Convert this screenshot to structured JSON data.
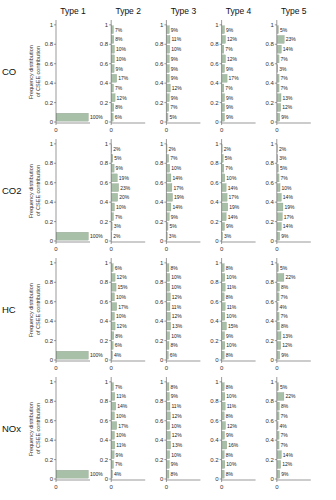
{
  "chart_data": [
    {
      "type": "bar",
      "orientation": "horizontal",
      "title": "Type 1",
      "y_label": "Frequency distribution of CSEE contribution",
      "annotations": [
        "CO"
      ],
      "bins": [
        0,
        0.1,
        0.2,
        0.3,
        0.4,
        0.5,
        0.6,
        0.7,
        0.8,
        0.9,
        1
      ],
      "values": [
        1.0,
        0.0,
        0.0,
        0.0,
        0.0,
        0.0,
        0.0,
        0.0,
        0.0,
        0.0
      ],
      "value_labels": [
        "100%",
        null,
        null,
        null,
        null,
        null,
        null,
        null,
        null,
        null
      ],
      "color": "#a8bfa8",
      "xlim": [
        0,
        1.05
      ],
      "xticks": [
        0
      ],
      "ylim": [
        -0.01,
        1.05
      ],
      "yticks": [
        0,
        0.2,
        0.4,
        0.6,
        0.8,
        1
      ],
      "data_labels": true,
      "grid": false
    },
    {
      "type": "bar",
      "orientation": "horizontal",
      "title": "Type 2",
      "bins": [
        0,
        0.1,
        0.2,
        0.3,
        0.4,
        0.5,
        0.6,
        0.7,
        0.8,
        0.9,
        1
      ],
      "values": [
        0.06,
        0.08,
        0.12,
        0.07,
        0.17,
        0.09,
        0.1,
        0.1,
        0.08,
        0.07
      ],
      "value_labels": [
        "6%",
        "8%",
        "12%",
        "7%",
        "17%",
        "9%",
        "10%",
        "10%",
        "8%",
        "7%"
      ],
      "color": "#a8bfa8",
      "xlim": [
        0,
        1.05
      ],
      "xticks": [
        0
      ],
      "ylim": [
        -0.01,
        1.05
      ],
      "yticks": [
        0,
        0.2,
        0.4,
        0.6,
        0.8,
        1
      ],
      "data_labels": true,
      "grid": false
    },
    {
      "type": "bar",
      "orientation": "horizontal",
      "title": "Type 3",
      "bins": [
        0,
        0.1,
        0.2,
        0.3,
        0.4,
        0.5,
        0.6,
        0.7,
        0.8,
        0.9,
        1
      ],
      "values": [
        0.05,
        0.07,
        0.09,
        0.12,
        0.09,
        0.09,
        0.09,
        0.1,
        0.11,
        0.09
      ],
      "value_labels": [
        "5%",
        "7%",
        "9%",
        "12%",
        "9%",
        "9%",
        "9%",
        "10%",
        "11%",
        "9%"
      ],
      "color": "#a8bfa8",
      "xlim": [
        0,
        1.05
      ],
      "xticks": [
        0
      ],
      "ylim": [
        -0.01,
        1.05
      ],
      "yticks": [
        0,
        0.2,
        0.4,
        0.6,
        0.8,
        1
      ],
      "data_labels": true,
      "grid": false
    },
    {
      "type": "bar",
      "orientation": "horizontal",
      "title": "Type 4",
      "bins": [
        0,
        0.1,
        0.2,
        0.3,
        0.4,
        0.5,
        0.6,
        0.7,
        0.8,
        0.9,
        1
      ],
      "values": [
        0.09,
        0.09,
        0.09,
        0.07,
        0.17,
        0.09,
        0.12,
        0.07,
        0.12,
        0.09
      ],
      "value_labels": [
        "9%",
        "9%",
        "9%",
        "7%",
        "17%",
        "9%",
        "12%",
        "7%",
        "12%",
        "9%"
      ],
      "color": "#a8bfa8",
      "xlim": [
        0,
        1.05
      ],
      "xticks": [
        0
      ],
      "ylim": [
        -0.01,
        1.05
      ],
      "yticks": [
        0,
        0.2,
        0.4,
        0.6,
        0.8,
        1
      ],
      "data_labels": true,
      "grid": false
    },
    {
      "type": "bar",
      "orientation": "horizontal",
      "title": "Type 5",
      "bins": [
        0,
        0.1,
        0.2,
        0.3,
        0.4,
        0.5,
        0.6,
        0.7,
        0.8,
        0.9,
        1
      ],
      "values": [
        0.09,
        0.12,
        0.13,
        0.07,
        0.07,
        0.03,
        0.07,
        0.14,
        0.23,
        0.05
      ],
      "value_labels": [
        "9%",
        "12%",
        "13%",
        "7%",
        "7%",
        "3%",
        "7%",
        "14%",
        "23%",
        "5%"
      ],
      "color": "#a8bfa8",
      "xlim": [
        0,
        1.05
      ],
      "xticks": [
        0
      ],
      "ylim": [
        -0.01,
        1.05
      ],
      "yticks": [
        0,
        0.2,
        0.4,
        0.6,
        0.8,
        1
      ],
      "data_labels": true,
      "grid": false
    },
    {
      "type": "bar",
      "orientation": "horizontal",
      "y_label": "Frequency distribution of CSEE contribution",
      "annotations": [
        "CO2"
      ],
      "bins": [
        0,
        0.1,
        0.2,
        0.3,
        0.4,
        0.5,
        0.6,
        0.7,
        0.8,
        0.9,
        1
      ],
      "values": [
        1.0,
        0.0,
        0.0,
        0.0,
        0.0,
        0.0,
        0.0,
        0.0,
        0.0,
        0.0
      ],
      "value_labels": [
        "100%",
        null,
        null,
        null,
        null,
        null,
        null,
        null,
        null,
        null
      ],
      "color": "#a8bfa8",
      "xlim": [
        0,
        1.05
      ],
      "xticks": [
        0
      ],
      "ylim": [
        -0.01,
        1.05
      ],
      "yticks": [
        0,
        0.2,
        0.4,
        0.6,
        0.8,
        1
      ],
      "data_labels": true,
      "grid": false
    },
    {
      "type": "bar",
      "orientation": "horizontal",
      "bins": [
        0,
        0.1,
        0.2,
        0.3,
        0.4,
        0.5,
        0.6,
        0.7,
        0.8,
        0.9,
        1
      ],
      "values": [
        0.02,
        0.03,
        0.07,
        0.1,
        0.2,
        0.23,
        0.19,
        0.09,
        0.05,
        0.02
      ],
      "value_labels": [
        "2%",
        "3%",
        "7%",
        "10%",
        "20%",
        "23%",
        "19%",
        "9%",
        "5%",
        "2%"
      ],
      "color": "#a8bfa8",
      "xlim": [
        0,
        1.05
      ],
      "xticks": [
        0
      ],
      "ylim": [
        -0.01,
        1.05
      ],
      "yticks": [
        0,
        0.2,
        0.4,
        0.6,
        0.8,
        1
      ],
      "data_labels": true,
      "grid": false
    },
    {
      "type": "bar",
      "orientation": "horizontal",
      "bins": [
        0,
        0.1,
        0.2,
        0.3,
        0.4,
        0.5,
        0.6,
        0.7,
        0.8,
        0.9,
        1
      ],
      "values": [
        0.03,
        0.05,
        0.09,
        0.14,
        0.19,
        0.17,
        0.14,
        0.1,
        0.07,
        0.02
      ],
      "value_labels": [
        "3%",
        "5%",
        "9%",
        "14%",
        "19%",
        "17%",
        "14%",
        "10%",
        "7%",
        "2%"
      ],
      "color": "#a8bfa8",
      "xlim": [
        0,
        1.05
      ],
      "xticks": [
        0
      ],
      "ylim": [
        -0.01,
        1.05
      ],
      "yticks": [
        0,
        0.2,
        0.4,
        0.6,
        0.8,
        1
      ],
      "data_labels": true,
      "grid": false
    },
    {
      "type": "bar",
      "orientation": "horizontal",
      "bins": [
        0,
        0.1,
        0.2,
        0.3,
        0.4,
        0.5,
        0.6,
        0.7,
        0.8,
        0.9,
        1
      ],
      "values": [
        0.03,
        0.09,
        0.14,
        0.19,
        0.17,
        0.14,
        0.1,
        0.07,
        0.05,
        0.02
      ],
      "value_labels": [
        "3%",
        "9%",
        "14%",
        "19%",
        "17%",
        "14%",
        "10%",
        "7%",
        "5%",
        "2%"
      ],
      "color": "#a8bfa8",
      "xlim": [
        0,
        1.05
      ],
      "xticks": [
        0
      ],
      "ylim": [
        -0.01,
        1.05
      ],
      "yticks": [
        0,
        0.2,
        0.4,
        0.6,
        0.8,
        1
      ],
      "data_labels": true,
      "grid": false
    },
    {
      "type": "bar",
      "orientation": "horizontal",
      "bins": [
        0,
        0.1,
        0.2,
        0.3,
        0.4,
        0.5,
        0.6,
        0.7,
        0.8,
        0.9,
        1
      ],
      "values": [
        0.09,
        0.14,
        0.17,
        0.19,
        0.14,
        0.1,
        0.07,
        0.05,
        0.03,
        0.02
      ],
      "value_labels": [
        "9%",
        "14%",
        "17%",
        "19%",
        "14%",
        "10%",
        "7%",
        "5%",
        "3%",
        "2%"
      ],
      "color": "#a8bfa8",
      "xlim": [
        0,
        1.05
      ],
      "xticks": [
        0
      ],
      "ylim": [
        -0.01,
        1.05
      ],
      "yticks": [
        0,
        0.2,
        0.4,
        0.6,
        0.8,
        1
      ],
      "data_labels": true,
      "grid": false
    },
    {
      "type": "bar",
      "orientation": "horizontal",
      "y_label": "Frequency distribution of CSEE contribution",
      "annotations": [
        "HC"
      ],
      "bins": [
        0,
        0.1,
        0.2,
        0.3,
        0.4,
        0.5,
        0.6,
        0.7,
        0.8,
        0.9,
        1
      ],
      "values": [
        1.0,
        0.0,
        0.0,
        0.0,
        0.0,
        0.0,
        0.0,
        0.0,
        0.0,
        0.0
      ],
      "value_labels": [
        "100%",
        null,
        null,
        null,
        null,
        null,
        null,
        null,
        null,
        null
      ],
      "color": "#a8bfa8",
      "xlim": [
        0,
        1.05
      ],
      "xticks": [
        0
      ],
      "ylim": [
        -0.01,
        1.05
      ],
      "yticks": [
        0,
        0.2,
        0.4,
        0.6,
        0.8,
        1
      ],
      "data_labels": true,
      "grid": false
    },
    {
      "type": "bar",
      "orientation": "horizontal",
      "bins": [
        0,
        0.1,
        0.2,
        0.3,
        0.4,
        0.5,
        0.6,
        0.7,
        0.8,
        0.9,
        1
      ],
      "values": [
        0.04,
        0.06,
        0.08,
        0.12,
        0.1,
        0.17,
        0.1,
        0.15,
        0.12,
        0.06
      ],
      "value_labels": [
        "4%",
        "6%",
        "8%",
        "12%",
        "10%",
        "17%",
        "10%",
        "15%",
        "12%",
        "6%"
      ],
      "color": "#a8bfa8",
      "xlim": [
        0,
        1.05
      ],
      "xticks": [
        0
      ],
      "ylim": [
        -0.01,
        1.05
      ],
      "yticks": [
        0,
        0.2,
        0.4,
        0.6,
        0.8,
        1
      ],
      "data_labels": true,
      "grid": false
    },
    {
      "type": "bar",
      "orientation": "horizontal",
      "bins": [
        0,
        0.1,
        0.2,
        0.3,
        0.4,
        0.5,
        0.6,
        0.7,
        0.8,
        0.9,
        1
      ],
      "values": [
        0.06,
        0.08,
        0.1,
        0.13,
        0.12,
        0.11,
        0.12,
        0.1,
        0.1,
        0.08
      ],
      "value_labels": [
        "6%",
        "8%",
        "10%",
        "13%",
        "12%",
        "11%",
        "12%",
        "10%",
        "10%",
        "8%"
      ],
      "color": "#a8bfa8",
      "xlim": [
        0,
        1.05
      ],
      "xticks": [
        0
      ],
      "ylim": [
        -0.01,
        1.05
      ],
      "yticks": [
        0,
        0.2,
        0.4,
        0.6,
        0.8,
        1
      ],
      "data_labels": true,
      "grid": false
    },
    {
      "type": "bar",
      "orientation": "horizontal",
      "bins": [
        0,
        0.1,
        0.2,
        0.3,
        0.4,
        0.5,
        0.6,
        0.7,
        0.8,
        0.9,
        1
      ],
      "values": [
        0.08,
        0.1,
        0.09,
        0.15,
        0.1,
        0.11,
        0.08,
        0.11,
        0.1,
        0.08
      ],
      "value_labels": [
        "8%",
        "10%",
        "9%",
        "15%",
        "10%",
        "11%",
        "8%",
        "11%",
        "10%",
        "8%"
      ],
      "color": "#a8bfa8",
      "xlim": [
        0,
        1.05
      ],
      "xticks": [
        0
      ],
      "ylim": [
        -0.01,
        1.05
      ],
      "yticks": [
        0,
        0.2,
        0.4,
        0.6,
        0.8,
        1
      ],
      "data_labels": true,
      "grid": false
    },
    {
      "type": "bar",
      "orientation": "horizontal",
      "bins": [
        0,
        0.1,
        0.2,
        0.3,
        0.4,
        0.5,
        0.6,
        0.7,
        0.8,
        0.9,
        1
      ],
      "values": [
        0.09,
        0.12,
        0.13,
        0.08,
        0.07,
        0.04,
        0.07,
        0.08,
        0.22,
        0.05
      ],
      "value_labels": [
        "9%",
        "12%",
        "13%",
        "8%",
        "7%",
        "4%",
        "7%",
        "8%",
        "22%",
        "5%"
      ],
      "color": "#a8bfa8",
      "xlim": [
        0,
        1.05
      ],
      "xticks": [
        0
      ],
      "ylim": [
        -0.01,
        1.05
      ],
      "yticks": [
        0,
        0.2,
        0.4,
        0.6,
        0.8,
        1
      ],
      "data_labels": true,
      "grid": false
    },
    {
      "type": "bar",
      "orientation": "horizontal",
      "y_label": "Frequency distribution of CSEE contribution",
      "annotations": [
        "NOx"
      ],
      "bins": [
        0,
        0.1,
        0.2,
        0.3,
        0.4,
        0.5,
        0.6,
        0.7,
        0.8,
        0.9,
        1
      ],
      "values": [
        1.0,
        0.0,
        0.0,
        0.0,
        0.0,
        0.0,
        0.0,
        0.0,
        0.0,
        0.0
      ],
      "value_labels": [
        "100%",
        null,
        null,
        null,
        null,
        null,
        null,
        null,
        null,
        null
      ],
      "color": "#a8bfa8",
      "xlim": [
        0,
        1.05
      ],
      "xticks": [
        0
      ],
      "ylim": [
        -0.01,
        1.05
      ],
      "yticks": [
        0,
        0.2,
        0.4,
        0.6,
        0.8,
        1
      ],
      "data_labels": true,
      "grid": false
    },
    {
      "type": "bar",
      "orientation": "horizontal",
      "bins": [
        0,
        0.1,
        0.2,
        0.3,
        0.4,
        0.5,
        0.6,
        0.7,
        0.8,
        0.9,
        1
      ],
      "values": [
        0.04,
        0.07,
        0.09,
        0.11,
        0.1,
        0.17,
        0.1,
        0.14,
        0.11,
        0.07
      ],
      "value_labels": [
        "4%",
        "7%",
        "9%",
        "11%",
        "10%",
        "17%",
        "10%",
        "14%",
        "11%",
        "7%"
      ],
      "color": "#a8bfa8",
      "xlim": [
        0,
        1.05
      ],
      "xticks": [
        0
      ],
      "ylim": [
        -0.01,
        1.05
      ],
      "yticks": [
        0,
        0.2,
        0.4,
        0.6,
        0.8,
        1
      ],
      "data_labels": true,
      "grid": false
    },
    {
      "type": "bar",
      "orientation": "horizontal",
      "bins": [
        0,
        0.1,
        0.2,
        0.3,
        0.4,
        0.5,
        0.6,
        0.7,
        0.8,
        0.9,
        1
      ],
      "values": [
        0.08,
        0.09,
        0.1,
        0.13,
        0.12,
        0.1,
        0.12,
        0.11,
        0.09,
        0.08
      ],
      "value_labels": [
        "8%",
        "9%",
        "10%",
        "13%",
        "12%",
        "10%",
        "12%",
        "11%",
        "9%",
        "8%"
      ],
      "color": "#a8bfa8",
      "xlim": [
        0,
        1.05
      ],
      "xticks": [
        0
      ],
      "ylim": [
        -0.01,
        1.05
      ],
      "yticks": [
        0,
        0.2,
        0.4,
        0.6,
        0.8,
        1
      ],
      "data_labels": true,
      "grid": false
    },
    {
      "type": "bar",
      "orientation": "horizontal",
      "bins": [
        0,
        0.1,
        0.2,
        0.3,
        0.4,
        0.5,
        0.6,
        0.7,
        0.8,
        0.9,
        1
      ],
      "values": [
        0.08,
        0.1,
        0.08,
        0.16,
        0.09,
        0.12,
        0.08,
        0.11,
        0.1,
        0.08
      ],
      "value_labels": [
        "8%",
        "10%",
        "8%",
        "16%",
        "9%",
        "12%",
        "8%",
        "11%",
        "10%",
        "8%"
      ],
      "color": "#a8bfa8",
      "xlim": [
        0,
        1.05
      ],
      "xticks": [
        0
      ],
      "ylim": [
        -0.01,
        1.05
      ],
      "yticks": [
        0,
        0.2,
        0.4,
        0.6,
        0.8,
        1
      ],
      "data_labels": true,
      "grid": false
    },
    {
      "type": "bar",
      "orientation": "horizontal",
      "bins": [
        0,
        0.1,
        0.2,
        0.3,
        0.4,
        0.5,
        0.6,
        0.7,
        0.8,
        0.9,
        1
      ],
      "values": [
        0.09,
        0.12,
        0.14,
        0.07,
        0.07,
        0.04,
        0.07,
        0.08,
        0.22,
        0.05
      ],
      "value_labels": [
        "9%",
        "12%",
        "14%",
        "7%",
        "7%",
        "4%",
        "7%",
        "8%",
        "22%",
        "5%"
      ],
      "color": "#a8bfa8",
      "xlim": [
        0,
        1.05
      ],
      "xticks": [
        0
      ],
      "ylim": [
        -0.01,
        1.05
      ],
      "yticks": [
        0,
        0.2,
        0.4,
        0.6,
        0.8,
        1
      ],
      "data_labels": true,
      "grid": false
    }
  ]
}
